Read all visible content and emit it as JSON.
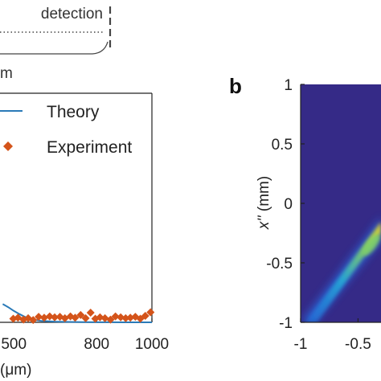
{
  "top_label": "detection",
  "partial_label": "m",
  "panel_b_label": "b",
  "chart_data": [
    {
      "type": "line",
      "panel": "a (cropped)",
      "xlabel_visible_fragment": "(μm)",
      "x_ticks": [
        500,
        800,
        1000
      ],
      "x_tick_labels": [
        "500",
        "800",
        "1000"
      ],
      "x_visible_range": [
        450,
        1000
      ],
      "legend": {
        "placement": "top-right",
        "entries": [
          "Theory",
          "Experiment"
        ]
      },
      "colors": {
        "theory": "#2a7ab8",
        "experiment": "#d4541a"
      },
      "series": [
        {
          "name": "Theory",
          "style": "line",
          "x": [
            460,
            480,
            500,
            520,
            540,
            560,
            580,
            600,
            650,
            700,
            750,
            800,
            850,
            900,
            950,
            1000
          ],
          "y": [
            0.04,
            0.033,
            0.025,
            0.018,
            0.012,
            0.008,
            0.005,
            0.003,
            0.0015,
            0.0008,
            0.0004,
            0.0002,
            0.0001,
            0.0,
            0.0,
            0.0
          ]
        },
        {
          "name": "Experiment",
          "style": "diamond",
          "x": [
            498,
            515,
            535,
            552,
            570,
            590,
            610,
            630,
            648,
            667,
            685,
            705,
            722,
            742,
            760,
            778,
            795,
            812,
            830,
            850,
            868,
            887,
            905,
            922,
            940,
            958,
            976,
            995
          ],
          "y": [
            0.008,
            0.01,
            0.006,
            0.009,
            0.005,
            0.012,
            0.01,
            0.013,
            0.011,
            0.012,
            0.009,
            0.013,
            0.01,
            0.016,
            0.009,
            0.021,
            0.008,
            0.011,
            0.009,
            0.006,
            0.013,
            0.011,
            0.009,
            0.01,
            0.012,
            0.008,
            0.014,
            0.022
          ]
        }
      ]
    },
    {
      "type": "heatmap",
      "panel": "b",
      "ylabel": "x'' (mm)",
      "y_ticks": [
        1,
        0.5,
        0,
        -0.5,
        -1
      ],
      "y_tick_labels": [
        "1",
        "0.5",
        "0",
        "-0.5",
        "-1"
      ],
      "ylim": [
        -1,
        1
      ],
      "x_ticks": [
        -1,
        -0.5
      ],
      "x_tick_labels": [
        "-1",
        "-0.5"
      ],
      "x_visible_range": [
        -1,
        -0.3
      ],
      "colormap": "parula",
      "background_color": "#352a87",
      "feature": "diagonal bright ridge rising from lower-left toward center, peak near x=-0.35, y=-0.35"
    }
  ]
}
